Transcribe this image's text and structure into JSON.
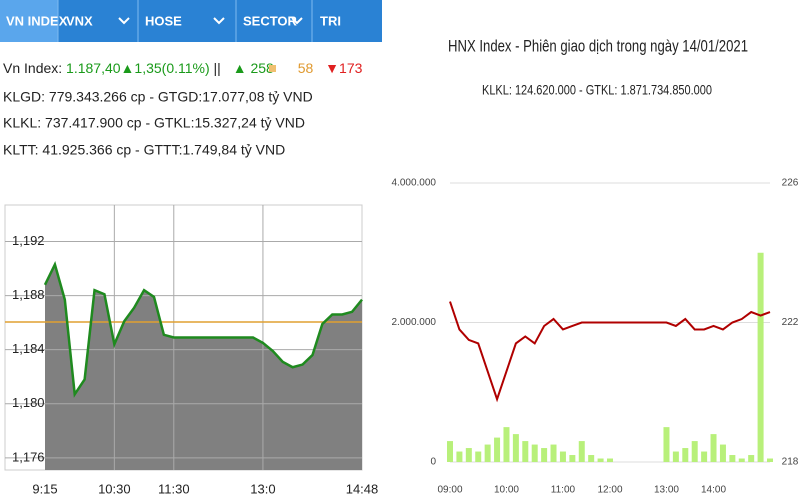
{
  "tabs": [
    "VN INDEX",
    "VNX",
    "HOSE",
    "SECTOR",
    "TRI"
  ],
  "stats": {
    "label": "Vn Index:",
    "value": "1.187,40",
    "change": "▲1,35(0.11%)",
    "sep": "||",
    "up": "▲ 258",
    "same": "58",
    "down": "▼173",
    "lines": [
      "KLGD: 779.343.266 cp - GTGD:17.077,08 tỷ VND",
      "KLKL: 737.417.900 cp - GTKL:15.327,24 tỷ VND",
      "KLTT: 41.925.366 cp - GTTT:1.749,84 tỷ VND"
    ]
  },
  "chart_data": [
    {
      "type": "area",
      "categories": [
        "9:15",
        null,
        null,
        null,
        null,
        null,
        null,
        "10:30",
        null,
        null,
        null,
        null,
        null,
        "11:30",
        null,
        null,
        null,
        null,
        null,
        null,
        null,
        null,
        "13:0",
        null,
        null,
        null,
        null,
        null,
        null,
        null,
        null,
        null,
        "14:48"
      ],
      "values": [
        1188.8,
        1190.3,
        1187.7,
        1180.7,
        1181.8,
        1188.4,
        1188.1,
        1184.4,
        1186.1,
        1187.1,
        1188.4,
        1187.9,
        1185.1,
        1184.9,
        1184.9,
        1184.9,
        1184.9,
        1184.9,
        1184.9,
        1184.9,
        1184.9,
        1184.9,
        1184.5,
        1183.9,
        1183.1,
        1182.7,
        1182.9,
        1183.6,
        1185.9,
        1186.6,
        1186.6,
        1186.8,
        1187.7
      ],
      "color": "#1f8a1f",
      "fill": "#808080",
      "reference": 1186.05,
      "reference_color": "#e0a030",
      "ylim": [
        1175.1,
        1194.7
      ],
      "yticks": [
        {
          "value": 1176,
          "label": "1,176"
        },
        {
          "value": 1180,
          "label": "1,180"
        },
        {
          "value": 1184,
          "label": "1,184"
        },
        {
          "value": 1188,
          "label": "1,188"
        },
        {
          "value": 1192,
          "label": "1,192"
        }
      ],
      "grid": true
    },
    {
      "type": "combo",
      "title": "HNX Index - Phiên giao dịch trong ngày 14/01/2021",
      "subtitle": "KLKL: 124.620.000 - GTKL: 1.871.734.850.000",
      "categories": [
        "09:00",
        null,
        null,
        null,
        null,
        null,
        "10:00",
        null,
        null,
        null,
        null,
        null,
        "11:00",
        null,
        null,
        null,
        null,
        "12:00",
        null,
        null,
        null,
        null,
        null,
        "13:00",
        null,
        null,
        null,
        null,
        "14:00",
        null,
        null,
        null,
        null,
        null,
        null
      ],
      "series": [
        {
          "name": "KLKL",
          "type": "bar",
          "axis": "y",
          "color": "#b8f07a",
          "values": [
            300000,
            150000,
            200000,
            150000,
            250000,
            350000,
            500000,
            400000,
            300000,
            250000,
            200000,
            250000,
            150000,
            100000,
            300000,
            100000,
            50000,
            50000,
            0,
            0,
            0,
            0,
            0,
            500000,
            150000,
            200000,
            300000,
            150000,
            400000,
            250000,
            100000,
            50000,
            100000,
            3000000,
            50000
          ]
        },
        {
          "name": "HNX Index",
          "type": "line",
          "axis": "y2",
          "color": "#b00000",
          "values": [
            222.6,
            221.8,
            221.5,
            221.4,
            220.6,
            219.8,
            220.6,
            221.4,
            221.6,
            221.4,
            221.9,
            222.1,
            221.8,
            221.9,
            222.0,
            222.0,
            222.0,
            222.0,
            222.0,
            222.0,
            222.0,
            222.0,
            222.0,
            222.0,
            221.9,
            222.1,
            221.8,
            221.8,
            221.9,
            221.8,
            222.0,
            222.1,
            222.3,
            222.2,
            222.3
          ]
        }
      ],
      "ylim": [
        0,
        4000000
      ],
      "yticks": [
        0,
        {
          "value": 2000000,
          "label": "2.000.000"
        },
        {
          "value": 4000000,
          "label": "4.000.000"
        }
      ],
      "y2lim": [
        218,
        226
      ],
      "y2ticks": [
        218,
        222,
        226
      ],
      "grid": true
    }
  ]
}
